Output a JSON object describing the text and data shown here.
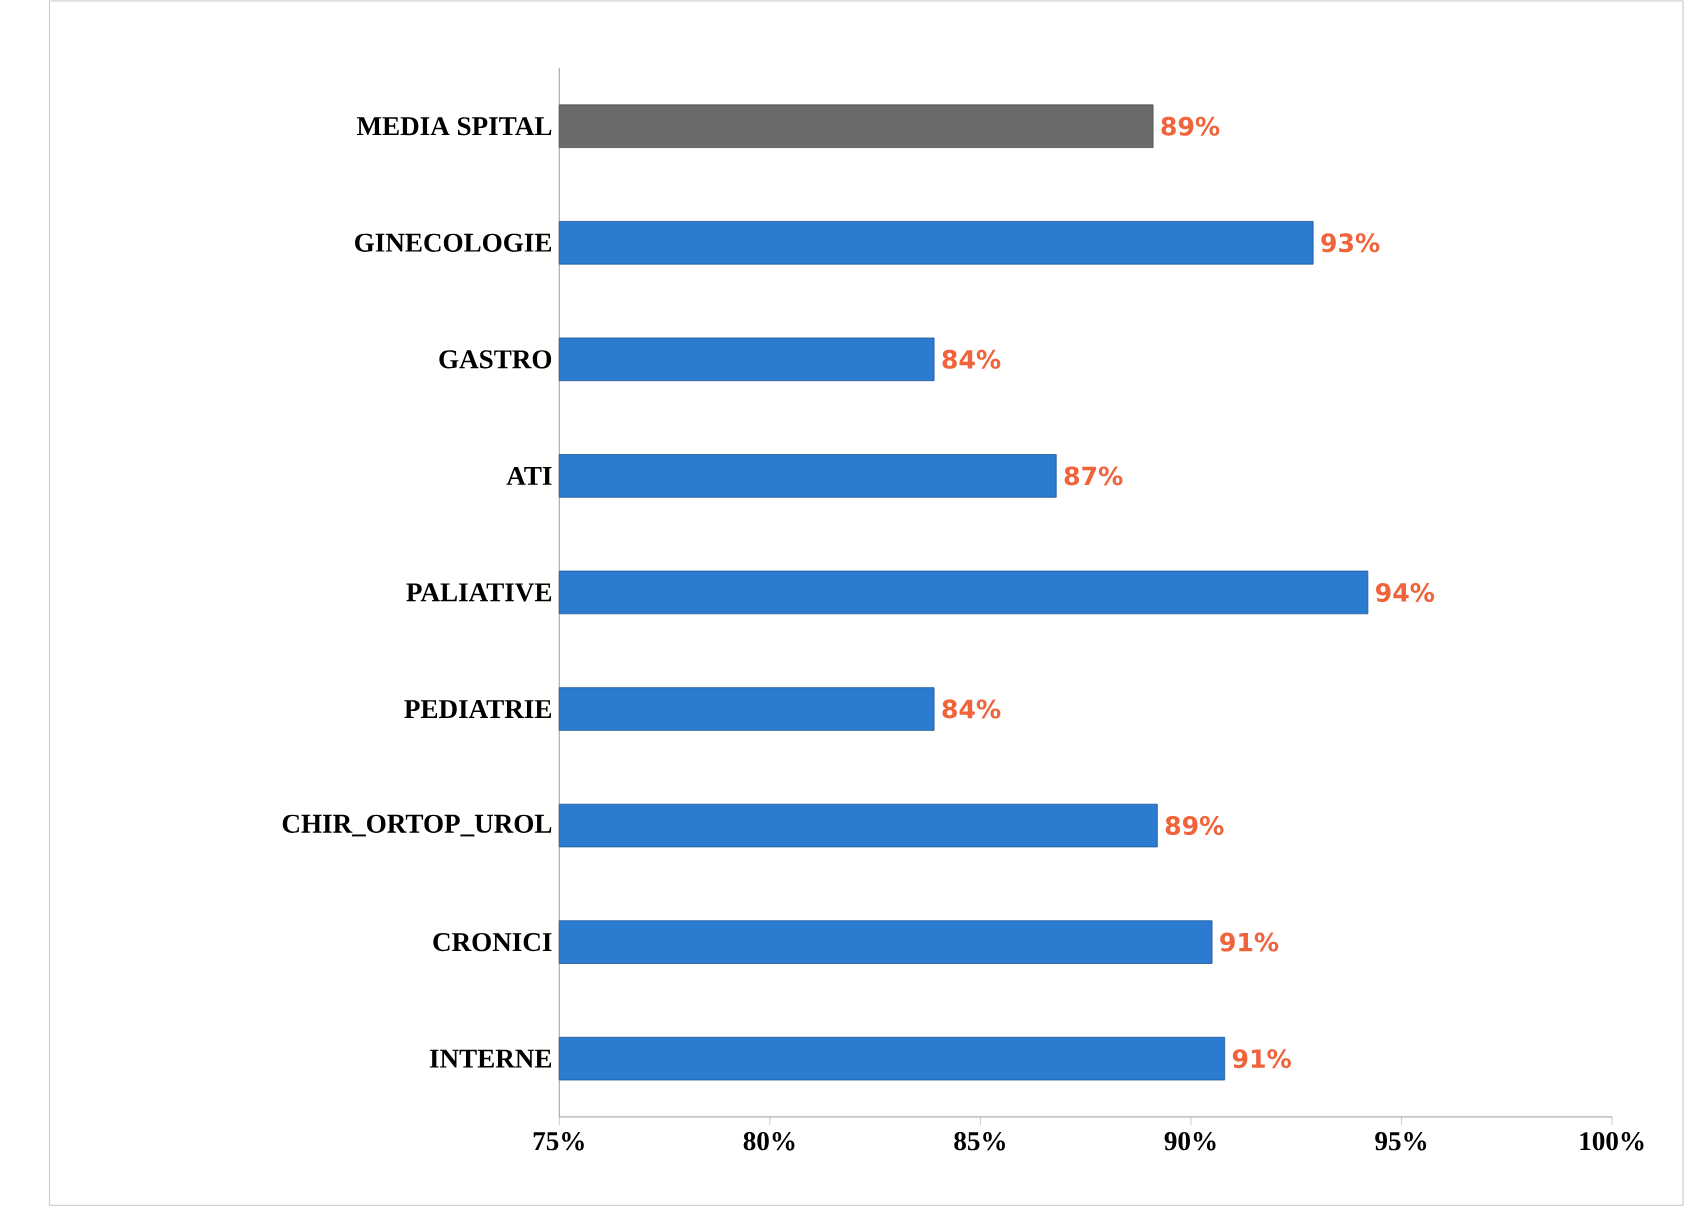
{
  "chart_data": {
    "type": "bar",
    "orientation": "horizontal",
    "categories": [
      "MEDIA SPITAL",
      "GINECOLOGIE",
      "GASTRO",
      "ATI",
      "PALIATIVE",
      "PEDIATRIE",
      "CHIR_ORTOP_UROL",
      "CRONICI",
      "INTERNE"
    ],
    "values": [
      89.1,
      92.9,
      83.9,
      86.8,
      94.2,
      83.9,
      89.2,
      90.5,
      90.8
    ],
    "colors": [
      "#6b6b6b",
      "#2b7bd0",
      "#2b7bd0",
      "#2b7bd0",
      "#2b7bd0",
      "#2b7bd0",
      "#2b7bd0",
      "#2b7bd0",
      "#2b7bd0"
    ],
    "value_labels": [
      "89%",
      "93%",
      "84%",
      "87%",
      "94%",
      "84%",
      "89%",
      "91%",
      "91%"
    ],
    "xlim": [
      75,
      100
    ],
    "xticks": [
      {
        "value": 75,
        "label": "75%"
      },
      {
        "value": 80,
        "label": "80%"
      },
      {
        "value": 85,
        "label": "85%"
      },
      {
        "value": 90,
        "label": "90%"
      },
      {
        "value": 95,
        "label": "95%"
      },
      {
        "value": 100,
        "label": "100%"
      }
    ],
    "grid": false
  }
}
